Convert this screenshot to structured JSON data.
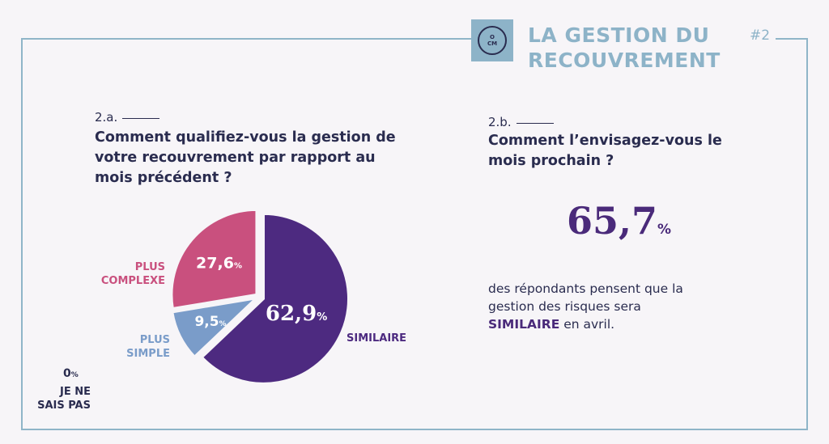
{
  "header": {
    "logo_top": "O",
    "logo_bottom": "CM",
    "title_line1": "LA GESTION DU",
    "title_line2": "RECOUVREMENT",
    "number": "#2"
  },
  "question_a": {
    "number": "2.a.",
    "line1": "Comment qualifiez-vous la gestion de",
    "line2": "votre recouvrement par rapport au",
    "line3": "mois précédent ?"
  },
  "question_b": {
    "number": "2.b.",
    "line1": "Comment l’envisagez-vous le",
    "line2": "mois prochain ?",
    "value": "65,7",
    "value_unit": "%",
    "desc_line1": "des répondants pensent que la",
    "desc_line2": "gestion des risques sera",
    "desc_highlight": "SIMILAIRE",
    "desc_tail": " en avril."
  },
  "chart_data": {
    "type": "pie",
    "title": "",
    "slices": [
      {
        "label": "SIMILAIRE",
        "value": 62.9,
        "display": "62,9",
        "color": "#4d2a80"
      },
      {
        "label": "PLUS SIMPLE",
        "value": 9.5,
        "display": "9,5",
        "color": "#7a9cc9"
      },
      {
        "label": "PLUS COMPLEXE",
        "value": 27.6,
        "display": "27,6",
        "color": "#c9507e"
      },
      {
        "label": "JE NE SAIS PAS",
        "value": 0,
        "display": "0",
        "color": "#5b8ea6"
      }
    ],
    "unit": "%",
    "labels": {
      "complexe_1": "PLUS",
      "complexe_2": "COMPLEXE",
      "simple_1": "PLUS",
      "simple_2": "SIMPLE",
      "similaire": "SIMILAIRE",
      "jnsp_1": "JE NE",
      "jnsp_2": "SAIS PAS"
    }
  }
}
